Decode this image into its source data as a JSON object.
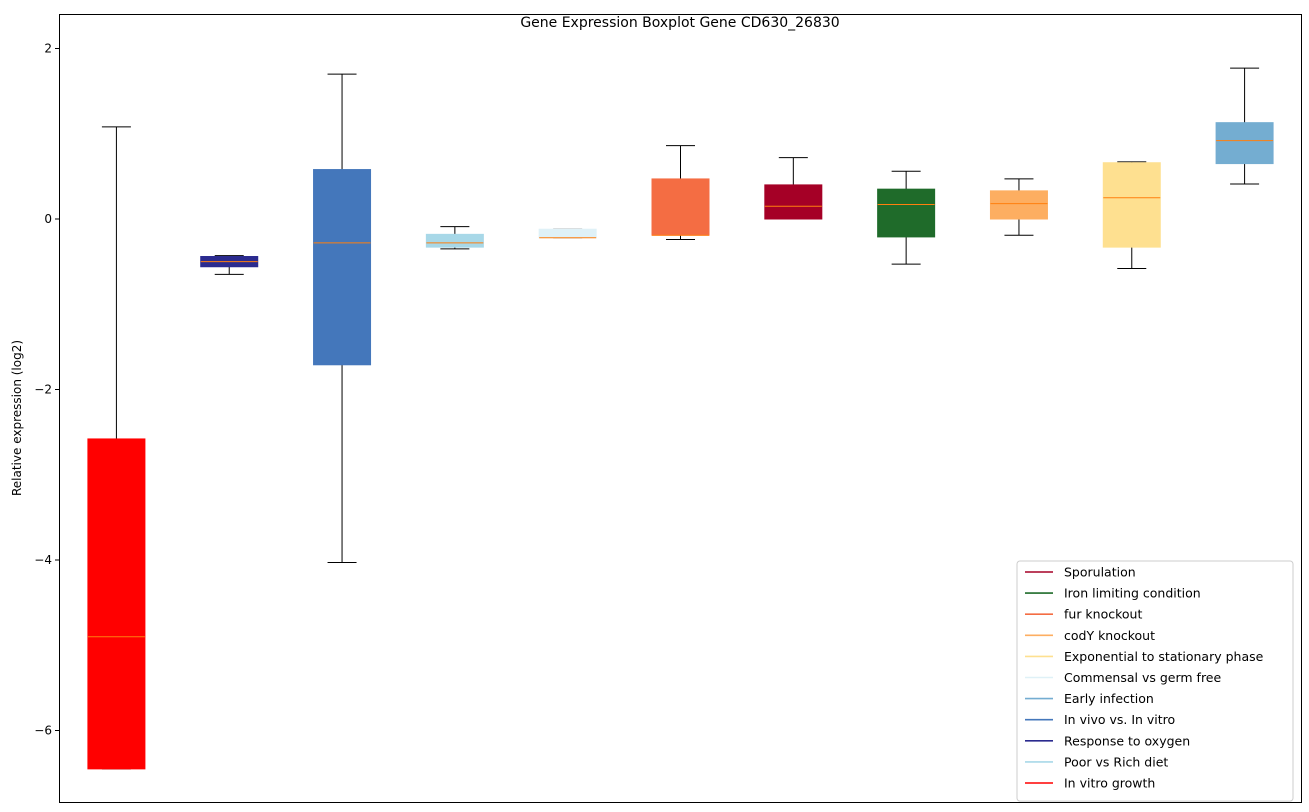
{
  "chart_data": {
    "type": "boxplot",
    "title": "Gene Expression Boxplot Gene CD630_26830",
    "xlabel": "",
    "ylabel": "Relative expression (log2)",
    "ylim": [
      -6.85,
      2.2
    ],
    "yticks": [
      2,
      0,
      -2,
      -4,
      -6
    ],
    "ytick_labels": [
      "2",
      "0",
      "−2",
      "−4",
      "−6"
    ],
    "legend_position": "lower-right",
    "median_color": "#ff7f0e",
    "series": [
      {
        "name": "In vitro growth",
        "color": "#ff0000",
        "whisker_low": -6.45,
        "q1": -6.45,
        "median": -4.9,
        "q3": -2.58,
        "whisker_high": 1.08
      },
      {
        "name": "Response to oxygen",
        "color": "#2b2b8f",
        "whisker_low": -0.65,
        "q1": -0.56,
        "median": -0.5,
        "q3": -0.44,
        "whisker_high": -0.43
      },
      {
        "name": "In vivo vs. In vitro",
        "color": "#4477bb",
        "whisker_low": -4.03,
        "q1": -1.71,
        "median": -0.28,
        "q3": 0.58,
        "whisker_high": 1.7
      },
      {
        "name": "Poor vs Rich diet",
        "color": "#a8d8e8",
        "whisker_low": -0.35,
        "q1": -0.33,
        "median": -0.28,
        "q3": -0.18,
        "whisker_high": -0.09
      },
      {
        "name": "Commensal vs germ free",
        "color": "#dff1f7",
        "whisker_low": -0.22,
        "q1": -0.22,
        "median": -0.22,
        "q3": -0.12,
        "whisker_high": -0.12
      },
      {
        "name": "fur knockout",
        "color": "#f46d43",
        "whisker_low": -0.24,
        "q1": -0.19,
        "median": -0.19,
        "q3": 0.47,
        "whisker_high": 0.86
      },
      {
        "name": "Sporulation",
        "color": "#a50026",
        "whisker_low": 0.0,
        "q1": 0.0,
        "median": 0.15,
        "q3": 0.4,
        "whisker_high": 0.72
      },
      {
        "name": "Iron limiting condition",
        "color": "#1f6b2a",
        "whisker_low": -0.53,
        "q1": -0.21,
        "median": 0.17,
        "q3": 0.35,
        "whisker_high": 0.56
      },
      {
        "name": "codY knockout",
        "color": "#fdae61",
        "whisker_low": -0.19,
        "q1": 0.0,
        "median": 0.18,
        "q3": 0.33,
        "whisker_high": 0.47
      },
      {
        "name": "Exponential to stationary phase",
        "color": "#fee090",
        "whisker_low": -0.58,
        "q1": -0.33,
        "median": 0.25,
        "q3": 0.66,
        "whisker_high": 0.67
      },
      {
        "name": "Early infection",
        "color": "#74add1",
        "whisker_low": 0.41,
        "q1": 0.65,
        "median": 0.92,
        "q3": 1.13,
        "whisker_high": 1.77
      }
    ],
    "legend": [
      {
        "label": "Sporulation",
        "color": "#a50026"
      },
      {
        "label": "Iron limiting condition",
        "color": "#1f6b2a"
      },
      {
        "label": "fur knockout",
        "color": "#f46d43"
      },
      {
        "label": "codY knockout",
        "color": "#fdae61"
      },
      {
        "label": "Exponential to stationary phase",
        "color": "#fee090"
      },
      {
        "label": "Commensal vs germ free",
        "color": "#dff1f7"
      },
      {
        "label": "Early infection",
        "color": "#74add1"
      },
      {
        "label": "In vivo vs. In vitro",
        "color": "#4477bb"
      },
      {
        "label": "Response to oxygen",
        "color": "#2b2b8f"
      },
      {
        "label": "Poor vs Rich diet",
        "color": "#a8d8e8"
      },
      {
        "label": "In vitro growth",
        "color": "#ff0000"
      }
    ]
  }
}
